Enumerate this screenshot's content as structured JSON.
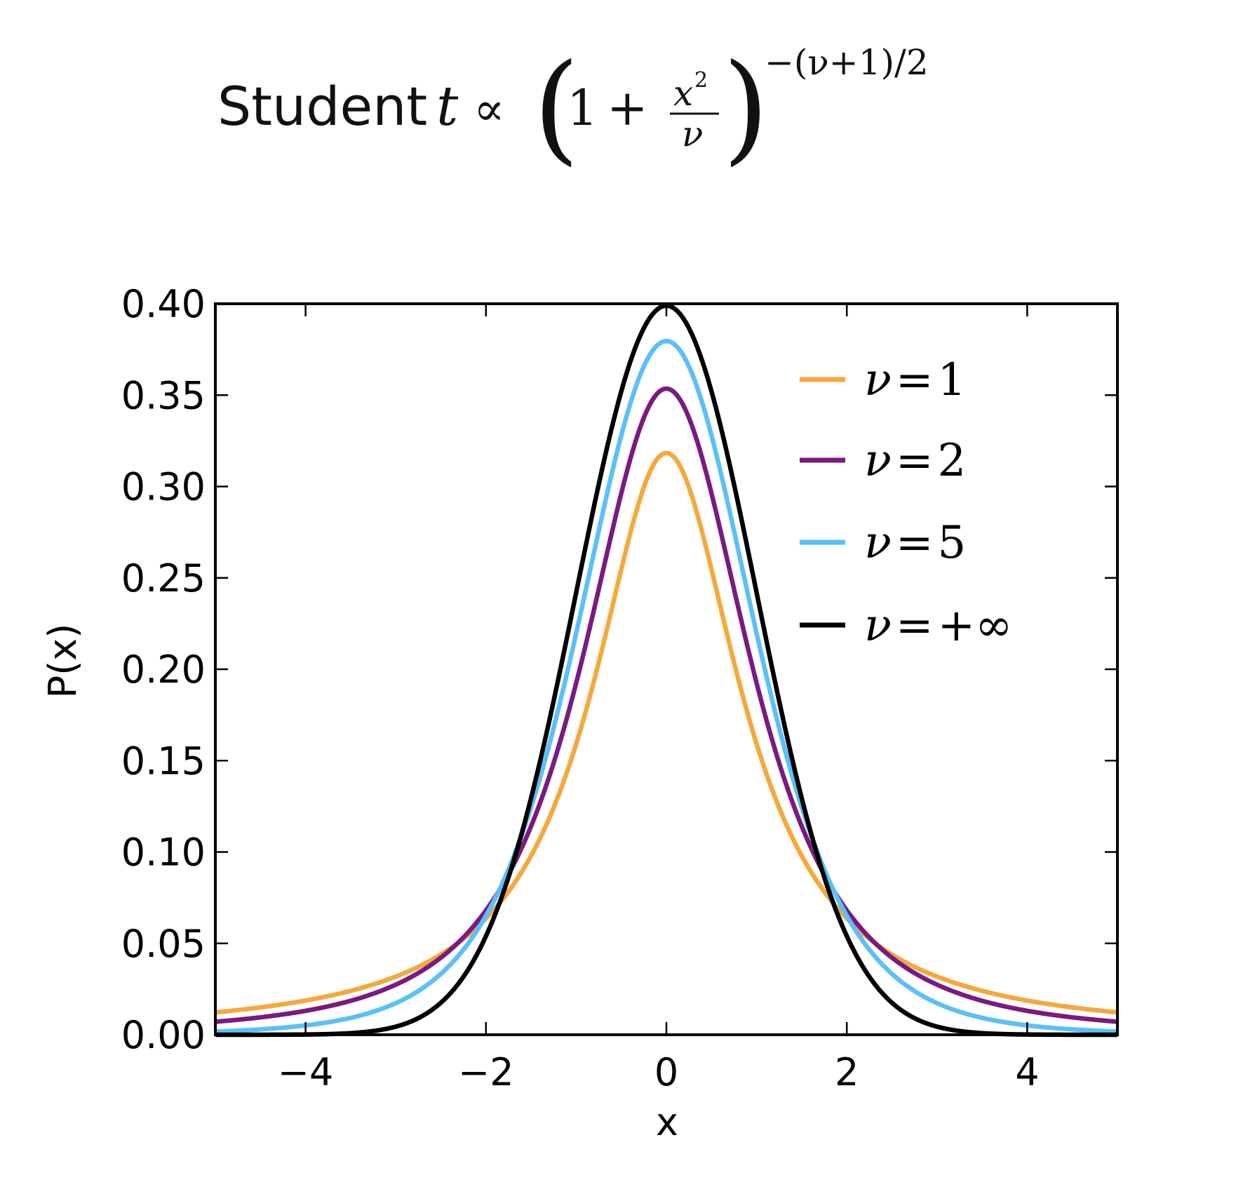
{
  "chart_data": {
    "type": "line",
    "title": {
      "prefix": "Student",
      "variable": "t",
      "formula": "∝ (1 + x²/ν)^(−(ν+1)/2)"
    },
    "xlabel": "x",
    "ylabel": "P(x)",
    "xlim": [
      -5,
      5
    ],
    "ylim": [
      0.0,
      0.4
    ],
    "x_ticks": [
      -4,
      -2,
      0,
      2,
      4
    ],
    "x_tick_labels": [
      "−4",
      "−2",
      "0",
      "2",
      "4"
    ],
    "y_ticks": [
      0.0,
      0.05,
      0.1,
      0.15,
      0.2,
      0.25,
      0.3,
      0.35,
      0.4
    ],
    "y_tick_labels": [
      "0.00",
      "0.05",
      "0.10",
      "0.15",
      "0.20",
      "0.25",
      "0.30",
      "0.35",
      "0.40"
    ],
    "grid": false,
    "legend_position": "top-right",
    "series": [
      {
        "name": "ν=1",
        "name_symbol": "ν",
        "name_value": "1",
        "nu": 1,
        "color": "#F5A83C",
        "x": [
          -5,
          -4,
          -3,
          -2,
          -1.5,
          -1,
          -0.5,
          0,
          0.5,
          1,
          1.5,
          2,
          3,
          4,
          5
        ],
        "y": [
          0.0122,
          0.0187,
          0.0318,
          0.0637,
          0.0979,
          0.1592,
          0.2546,
          0.3183,
          0.2546,
          0.1592,
          0.0979,
          0.0637,
          0.0318,
          0.0187,
          0.0122
        ]
      },
      {
        "name": "ν=2",
        "name_symbol": "ν",
        "name_value": "2",
        "nu": 2,
        "color": "#7A1A80",
        "x": [
          -5,
          -4,
          -3,
          -2,
          -1.5,
          -1,
          -0.5,
          0,
          0.5,
          1,
          1.5,
          2,
          3,
          4,
          5
        ],
        "y": [
          0.0071,
          0.0131,
          0.0274,
          0.068,
          0.1167,
          0.1925,
          0.3143,
          0.3536,
          0.3143,
          0.1925,
          0.1167,
          0.068,
          0.0274,
          0.0131,
          0.0071
        ]
      },
      {
        "name": "ν=5",
        "name_symbol": "ν",
        "name_value": "5",
        "nu": 5,
        "color": "#5BC0F8",
        "x": [
          -5,
          -4,
          -3,
          -2,
          -1.5,
          -1,
          -0.5,
          0,
          0.5,
          1,
          1.5,
          2,
          3,
          4,
          5
        ],
        "y": [
          0.0018,
          0.0051,
          0.0173,
          0.0651,
          0.1245,
          0.2197,
          0.3279,
          0.3796,
          0.3279,
          0.2197,
          0.1245,
          0.0651,
          0.0173,
          0.0051,
          0.0018
        ]
      },
      {
        "name": "ν=+∞",
        "name_symbol": "ν",
        "name_value": "+∞",
        "nu": null,
        "color": "#000000",
        "x": [
          -5,
          -4,
          -3,
          -2,
          -1.5,
          -1,
          -0.5,
          0,
          0.5,
          1,
          1.5,
          2,
          3,
          4,
          5
        ],
        "y": [
          0.0,
          0.0001,
          0.0044,
          0.054,
          0.1295,
          0.242,
          0.3521,
          0.3989,
          0.3521,
          0.242,
          0.1295,
          0.054,
          0.0044,
          0.0001,
          0.0
        ]
      }
    ]
  }
}
